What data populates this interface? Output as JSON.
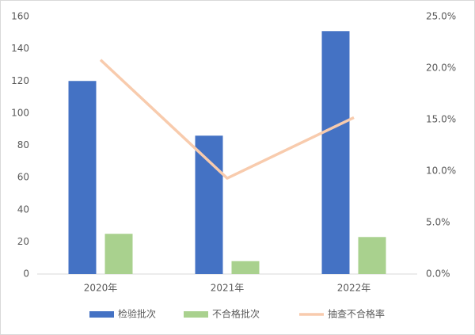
{
  "chart_data": {
    "type": "bar",
    "categories": [
      "2020年",
      "2021年",
      "2022年"
    ],
    "series": [
      {
        "name": "检验批次",
        "color": "#4472c4",
        "type": "bar",
        "values": [
          120,
          86,
          151
        ]
      },
      {
        "name": "不合格批次",
        "color": "#a9d18e",
        "type": "bar",
        "values": [
          25,
          8,
          23
        ]
      },
      {
        "name": "抽查不合格率",
        "color": "#f8cbad",
        "type": "line",
        "axis": "y2",
        "values": [
          20.8,
          9.3,
          15.2
        ]
      }
    ],
    "ylim": [
      0,
      160
    ],
    "yticks": [
      0,
      20,
      40,
      60,
      80,
      100,
      120,
      140,
      160
    ],
    "y2lim": [
      0,
      25
    ],
    "y2ticks": [
      {
        "value": 0,
        "label": "0.0%"
      },
      {
        "value": 5,
        "label": "5.0%"
      },
      {
        "value": 10,
        "label": "10.0%"
      },
      {
        "value": 15,
        "label": "15.0%"
      },
      {
        "value": 20,
        "label": "20.0%"
      },
      {
        "value": 25,
        "label": "25.0%"
      }
    ],
    "grid": false,
    "legend": "bottom"
  }
}
